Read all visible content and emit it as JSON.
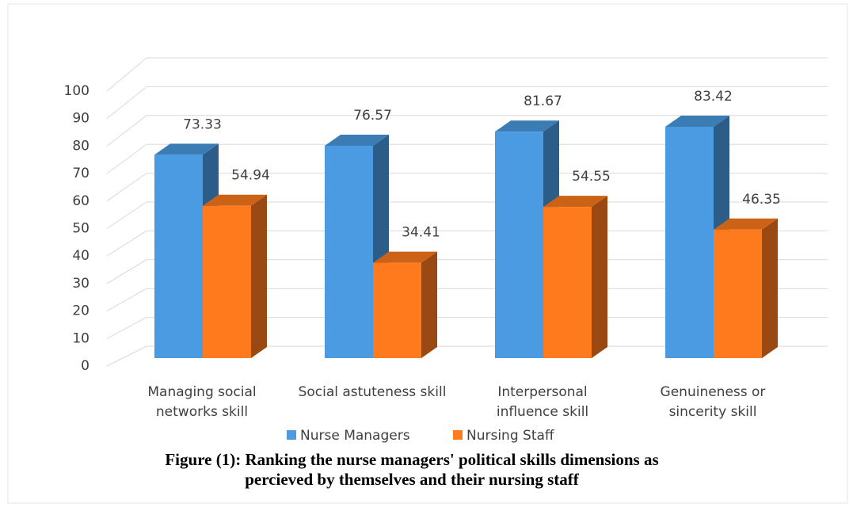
{
  "chart_data": {
    "type": "bar3d",
    "title": "Figure (1): Ranking the nurse managers' political skills dimensions as percieved by themselves and their nursing staff",
    "categories": [
      "Managing social networks skill",
      "Social astuteness skill",
      "Interpersonal influence skill",
      "Genuineness or sincerity skill"
    ],
    "series": [
      {
        "name": "Nurse Managers",
        "color": "#4a9be2",
        "values": [
          73.33,
          76.57,
          81.67,
          83.42
        ]
      },
      {
        "name": "Nursing Staff",
        "color": "#ff7a1c",
        "values": [
          54.94,
          34.41,
          54.55,
          46.35
        ]
      }
    ],
    "ylim": [
      0,
      100
    ],
    "yticks": [
      0,
      10,
      20,
      30,
      40,
      50,
      60,
      70,
      80,
      90,
      100
    ],
    "grid": true,
    "legend": "bottom"
  }
}
